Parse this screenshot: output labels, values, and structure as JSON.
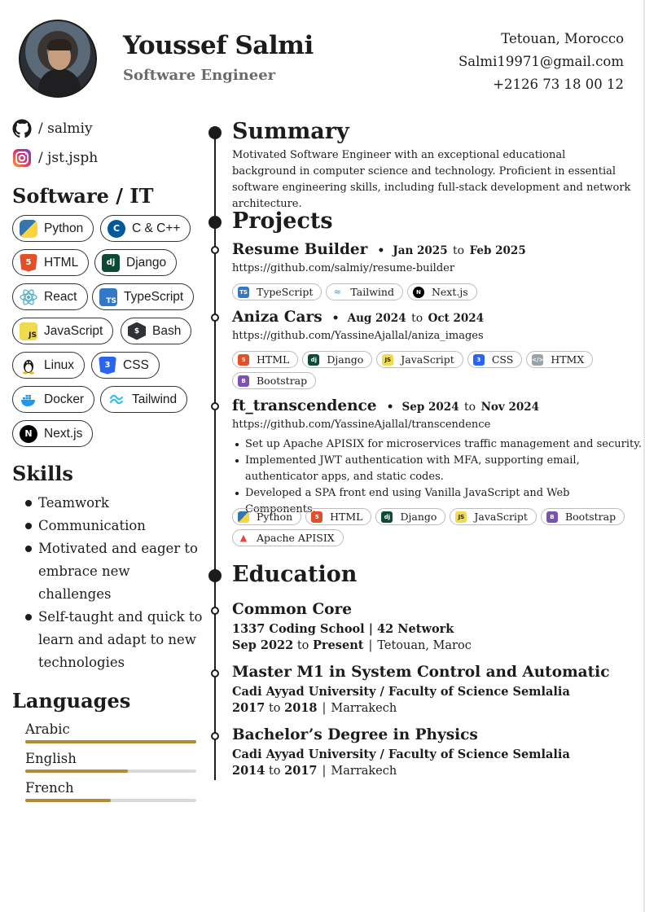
{
  "header": {
    "name": "Youssef Salmi",
    "role": "Software Engineer",
    "location": "Tetouan, Morocco",
    "email": "Salmi19971@gmail.com",
    "phone": "+2126 73 18 00 12"
  },
  "social": [
    {
      "icon": "github-icon",
      "text": "/ salmiy"
    },
    {
      "icon": "instagram-icon",
      "text": "/ jst.jsph"
    }
  ],
  "software": {
    "title": "Software / IT",
    "items": [
      {
        "label": "Python",
        "icon": "python-icon",
        "color": "#3776ab"
      },
      {
        "label": "C & C++",
        "icon": "cpp-icon",
        "color": "#00599c"
      },
      {
        "label": "HTML",
        "icon": "html5-icon",
        "color": "#e34f26"
      },
      {
        "label": "Django",
        "icon": "django-icon",
        "color": "#0c4b33"
      },
      {
        "label": "React",
        "icon": "react-icon",
        "color": "#61dafb"
      },
      {
        "label": "TypeScript",
        "icon": "typescript-icon",
        "color": "#3178c6"
      },
      {
        "label": "JavaScript",
        "icon": "javascript-icon",
        "color": "#f0db4f"
      },
      {
        "label": "Bash",
        "icon": "bash-icon",
        "color": "#2f3134"
      },
      {
        "label": "Linux",
        "icon": "linux-icon",
        "color": "#1c1c1c"
      },
      {
        "label": "CSS",
        "icon": "css3-icon",
        "color": "#2965f1"
      },
      {
        "label": "Docker",
        "icon": "docker-icon",
        "color": "#2496ed"
      },
      {
        "label": "Tailwind",
        "icon": "tailwind-icon",
        "color": "#38bdf8"
      },
      {
        "label": "Next.js",
        "icon": "nextjs-icon",
        "color": "#000000"
      }
    ]
  },
  "skills": {
    "title": "Skills",
    "items": [
      "Teamwork",
      "Communication",
      "Motivated and eager to embrace new challenges",
      "Self-taught and quick to learn and adapt to new technologies"
    ]
  },
  "languages": {
    "title": "Languages",
    "items": [
      {
        "name": "Arabic",
        "level": 1.0
      },
      {
        "name": "English",
        "level": 0.6
      },
      {
        "name": "French",
        "level": 0.5
      }
    ],
    "bar_color": "#b28a3a"
  },
  "summary": {
    "title": "Summary",
    "text": "Motivated Software Engineer with an exceptional educational background in computer science and technology. Proficient in essential software engineering skills, including full-stack development and network architecture."
  },
  "projects": {
    "title": "Projects",
    "items": [
      {
        "name": "Resume Builder",
        "from": "Jan 2025",
        "to_word": "to",
        "until": "Feb 2025",
        "url": "https://github.com/salmiy/resume-builder",
        "bullets": [],
        "tags": [
          {
            "label": "TypeScript",
            "icon": "typescript-icon"
          },
          {
            "label": "Tailwind",
            "icon": "tailwind-icon"
          },
          {
            "label": "Next.js",
            "icon": "nextjs-icon"
          }
        ]
      },
      {
        "name": "Aniza Cars",
        "from": "Aug 2024",
        "to_word": "to",
        "until": "Oct 2024",
        "url": "https://github.com/YassineAjallal/aniza_images",
        "bullets": [],
        "tags": [
          {
            "label": "HTML",
            "icon": "html5-icon"
          },
          {
            "label": "Django",
            "icon": "django-icon"
          },
          {
            "label": "JavaScript",
            "icon": "javascript-icon"
          },
          {
            "label": "CSS",
            "icon": "css3-icon"
          },
          {
            "label": "HTMX",
            "icon": "htmx-icon"
          },
          {
            "label": "Bootstrap",
            "icon": "bootstrap-icon"
          }
        ]
      },
      {
        "name": "ft_transcendence",
        "from": "Sep 2024",
        "to_word": "to",
        "until": "Nov 2024",
        "url": "https://github.com/YassineAjallal/transcendence",
        "bullets": [
          "Set up Apache APISIX for microservices traffic management and security.",
          "Implemented JWT authentication with MFA, supporting email, authenticator apps, and static codes.",
          "Developed a SPA front end using Vanilla JavaScript and Web Components."
        ],
        "tags": [
          {
            "label": "Python",
            "icon": "python-icon"
          },
          {
            "label": "HTML",
            "icon": "html5-icon"
          },
          {
            "label": "Django",
            "icon": "django-icon"
          },
          {
            "label": "JavaScript",
            "icon": "javascript-icon"
          },
          {
            "label": "Bootstrap",
            "icon": "bootstrap-icon"
          },
          {
            "label": "Apache APISIX",
            "icon": "apisix-icon"
          }
        ]
      }
    ]
  },
  "education": {
    "title": "Education",
    "items": [
      {
        "title": "Common Core",
        "school": "1337 Coding School | 42 Network",
        "from": "Sep 2022",
        "to_word": "to",
        "until": "Present",
        "place": "Tetouan, Maroc"
      },
      {
        "title": "Master M1 in System Control and Automatic",
        "school": "Cadi Ayyad University / Faculty of Science Semlalia",
        "from": "2017",
        "to_word": "to",
        "until": "2018",
        "place": "Marrakech"
      },
      {
        "title": "Bachelor’s Degree in Physics",
        "school": "Cadi Ayyad University / Faculty of Science Semlalia",
        "from": "2014",
        "to_word": "to",
        "until": "2017",
        "place": "Marrakech"
      }
    ]
  },
  "separator": "|",
  "dot": "•"
}
